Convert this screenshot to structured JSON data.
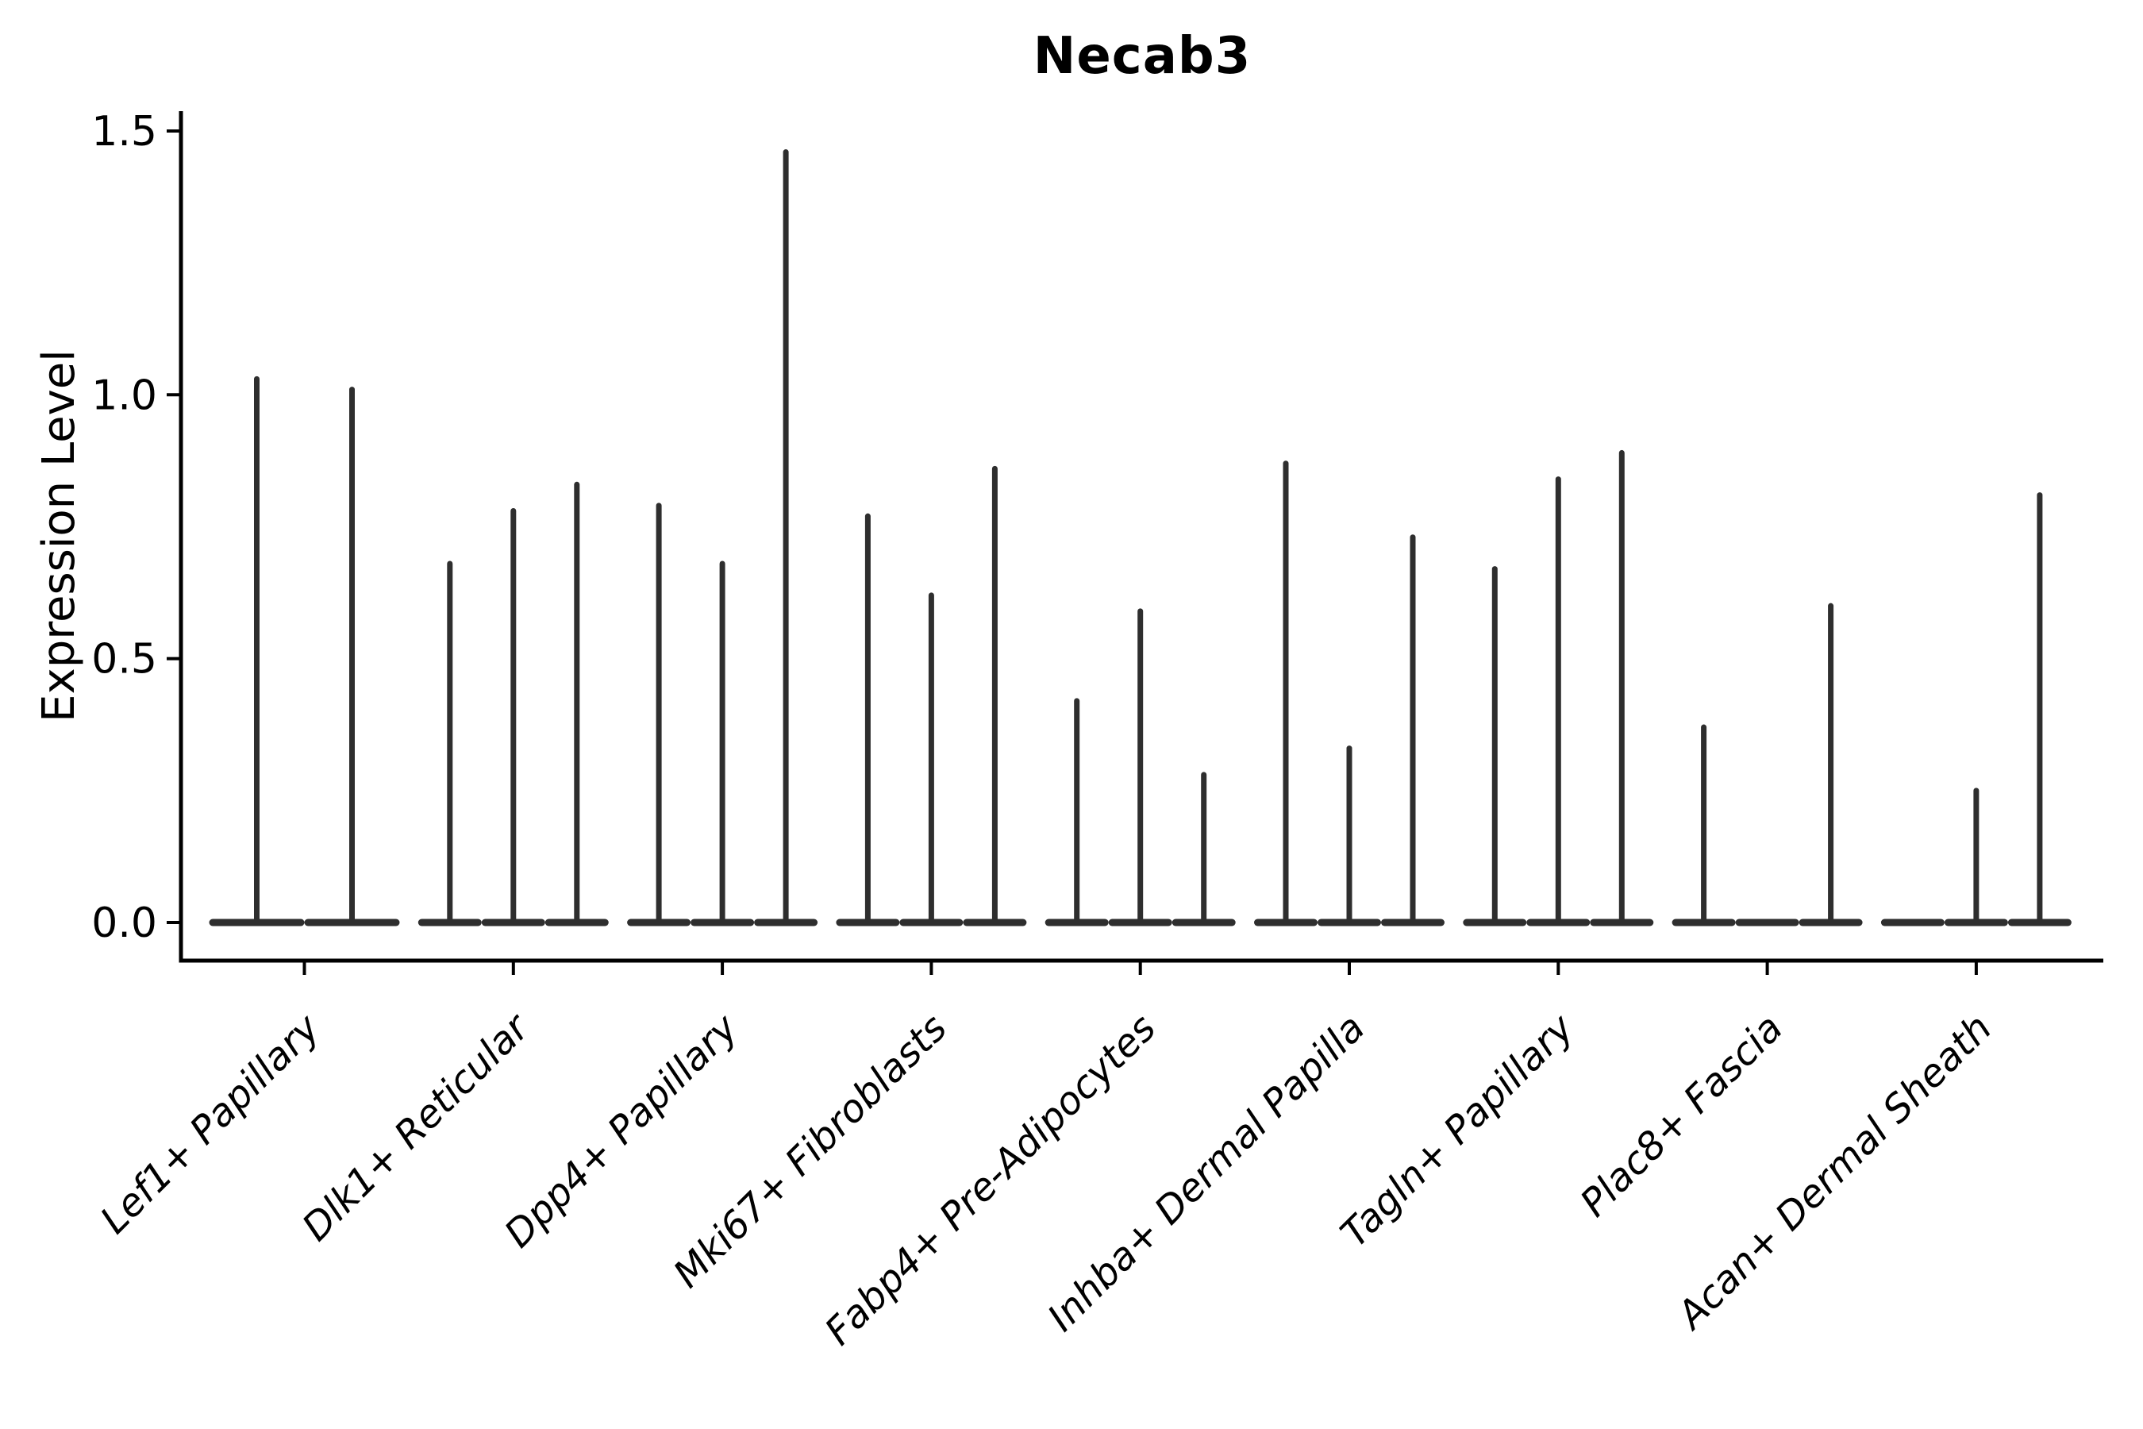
{
  "chart_data": {
    "type": "violin",
    "title": "Necab3",
    "ylabel": "Expression Level",
    "xlabel": "",
    "ylim": [
      0,
      1.5
    ],
    "yticks": [
      0.0,
      0.5,
      1.0,
      1.5
    ],
    "ytick_labels": [
      "0.0",
      "0.5",
      "1.0",
      "1.5"
    ],
    "grid": false,
    "legend": false,
    "x_label_rotation_deg": 45,
    "x_label_style": "italic",
    "categories": [
      "Lef1+ Papillary",
      "Dlk1+ Reticular",
      "Dpp4+ Papillary",
      "Mki67+ Fibroblasts",
      "Fabp4+ Pre-Adipocytes",
      "Inhba+ Dermal Papilla",
      "Tagln+ Papillary",
      "Plac8+ Fascia",
      "Acan+ Dermal Sheath"
    ],
    "groups": [
      {
        "category": "Lef1+ Papillary",
        "violin_max_expression": [
          1.03,
          1.01
        ]
      },
      {
        "category": "Dlk1+ Reticular",
        "violin_max_expression": [
          0.68,
          0.78,
          0.83
        ]
      },
      {
        "category": "Dpp4+ Papillary",
        "violin_max_expression": [
          0.79,
          0.68,
          1.46
        ]
      },
      {
        "category": "Mki67+ Fibroblasts",
        "violin_max_expression": [
          0.77,
          0.62,
          0.86
        ]
      },
      {
        "category": "Fabp4+ Pre-Adipocytes",
        "violin_max_expression": [
          0.42,
          0.59,
          0.28
        ]
      },
      {
        "category": "Inhba+ Dermal Papilla",
        "violin_max_expression": [
          0.87,
          0.33,
          0.73
        ]
      },
      {
        "category": "Tagln+ Papillary",
        "violin_max_expression": [
          0.67,
          0.84,
          0.89
        ]
      },
      {
        "category": "Plac8+ Fascia",
        "violin_max_expression": [
          0.37,
          0.0,
          0.6
        ]
      },
      {
        "category": "Acan+ Dermal Sheath",
        "violin_max_expression": [
          0.0,
          0.25,
          0.81
        ]
      }
    ],
    "colors": {
      "background": "#ffffff",
      "axis_ink": "#000000",
      "violin_ink": "#2e2e2e",
      "tick_label_ink": "#000000"
    }
  }
}
